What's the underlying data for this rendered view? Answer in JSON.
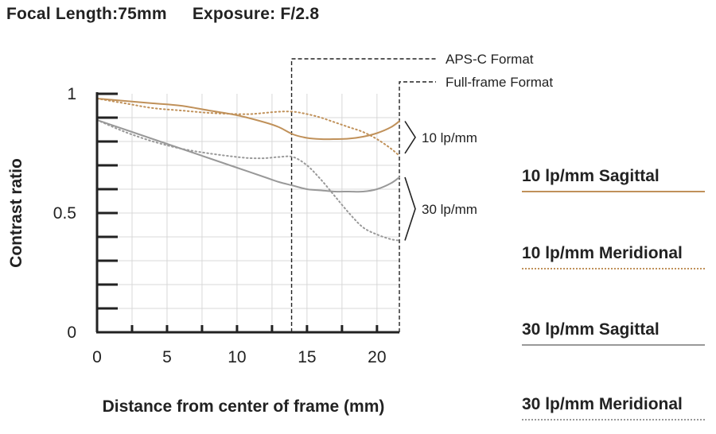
{
  "header": {
    "focal_length": "Focal Length:75mm",
    "exposure": "Exposure: F/2.8"
  },
  "chart_data": {
    "type": "line",
    "title": "",
    "xlabel": "Distance from center of frame (mm)",
    "ylabel": "Contrast ratio",
    "xlim": [
      0,
      21.6
    ],
    "ylim": [
      0,
      1
    ],
    "x_ticks": [
      0,
      5,
      10,
      15,
      20
    ],
    "x_tick_labels": [
      "0",
      "5",
      "10",
      "15",
      "20"
    ],
    "y_ticks": [
      0,
      0.5,
      1
    ],
    "y_tick_labels": [
      "0",
      "0.5",
      "1"
    ],
    "grid": true,
    "legend_placement": "right",
    "series": [
      {
        "name": "10 lp/mm Sagittal",
        "color": "#c0915a",
        "style": "solid",
        "x": [
          0,
          2,
          4,
          6,
          8,
          10,
          12,
          13,
          14,
          15,
          16,
          17,
          18,
          19,
          20,
          21,
          21.6
        ],
        "values": [
          0.98,
          0.97,
          0.96,
          0.95,
          0.93,
          0.91,
          0.88,
          0.86,
          0.83,
          0.815,
          0.81,
          0.81,
          0.812,
          0.82,
          0.835,
          0.86,
          0.885
        ]
      },
      {
        "name": "10 lp/mm Meridional",
        "color": "#c0915a",
        "style": "dotted",
        "x": [
          0,
          2,
          4,
          6,
          8,
          10,
          11,
          12,
          13,
          14,
          15,
          16,
          17,
          18,
          19,
          20,
          21,
          21.6
        ],
        "values": [
          0.98,
          0.96,
          0.94,
          0.93,
          0.92,
          0.915,
          0.915,
          0.92,
          0.925,
          0.925,
          0.915,
          0.9,
          0.88,
          0.86,
          0.84,
          0.81,
          0.77,
          0.74
        ]
      },
      {
        "name": "30 lp/mm Sagittal",
        "color": "#999999",
        "style": "solid",
        "x": [
          0,
          2,
          4,
          6,
          8,
          10,
          12,
          13,
          14,
          15,
          16,
          17,
          18,
          19,
          20,
          21,
          21.6
        ],
        "values": [
          0.89,
          0.85,
          0.81,
          0.77,
          0.73,
          0.69,
          0.65,
          0.63,
          0.615,
          0.6,
          0.595,
          0.59,
          0.59,
          0.59,
          0.6,
          0.625,
          0.65
        ]
      },
      {
        "name": "30 lp/mm Meridional",
        "color": "#999999",
        "style": "dotted",
        "x": [
          0,
          2,
          4,
          6,
          8,
          10,
          11,
          12,
          13,
          14,
          15,
          16,
          17,
          18,
          19,
          20,
          21,
          21.6
        ],
        "values": [
          0.89,
          0.84,
          0.8,
          0.77,
          0.75,
          0.735,
          0.73,
          0.73,
          0.735,
          0.735,
          0.7,
          0.64,
          0.57,
          0.5,
          0.44,
          0.41,
          0.39,
          0.385
        ]
      }
    ],
    "annotations": {
      "apsc_label": "APS-C Format",
      "apsc_x": 13.9,
      "fullframe_label": "Full-frame Format",
      "fullframe_x": 21.6,
      "group_10": {
        "label": "10 lp/mm",
        "y_range": [
          0.75,
          0.885
        ]
      },
      "group_30": {
        "label": "30 lp/mm",
        "y_range": [
          0.385,
          0.65
        ]
      }
    }
  },
  "legend": {
    "items": [
      {
        "label": "10 lp/mm Sagittal",
        "color": "#c0915a",
        "style": "solid"
      },
      {
        "label": "10 lp/mm Meridional",
        "color": "#c0915a",
        "style": "dotted"
      },
      {
        "label": "30 lp/mm Sagittal",
        "color": "#999999",
        "style": "solid"
      },
      {
        "label": "30 lp/mm Meridional",
        "color": "#999999",
        "style": "dotted"
      }
    ]
  }
}
